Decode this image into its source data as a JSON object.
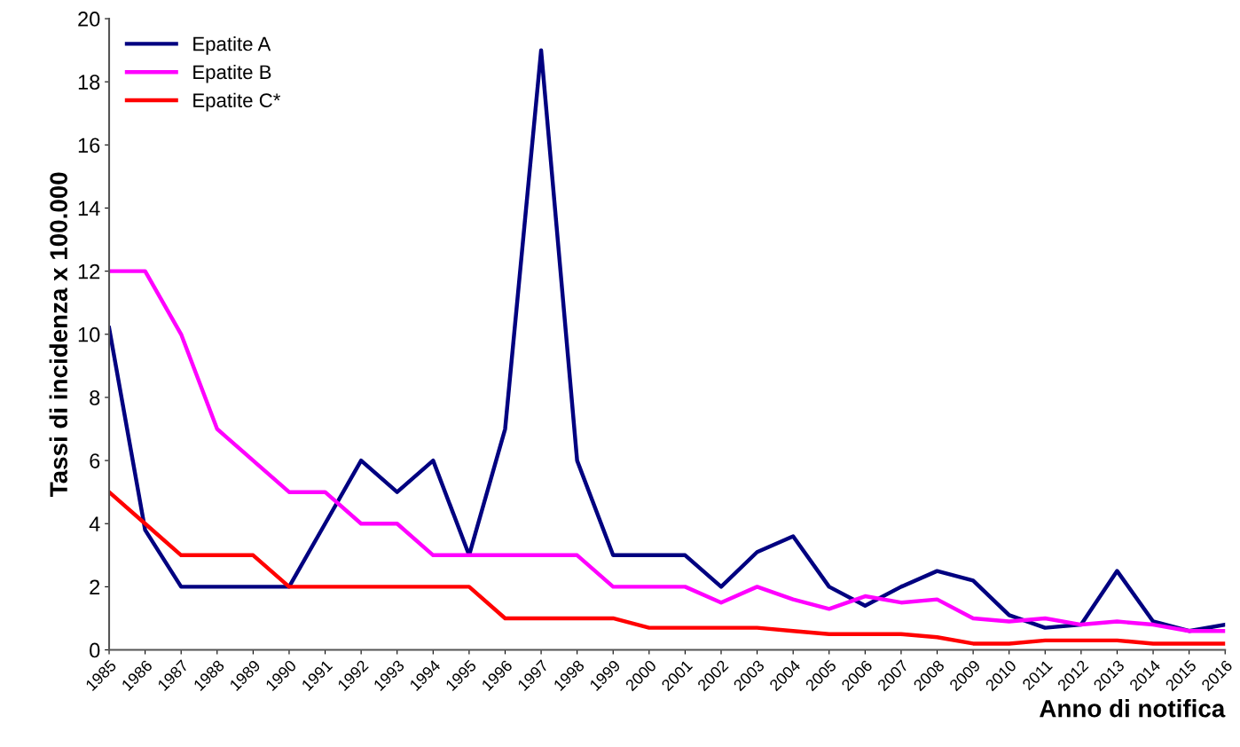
{
  "chart_data": {
    "type": "line",
    "xlabel": "Anno di notifica",
    "ylabel": "Tassi di incidenza x 100.000",
    "categories": [
      "1985",
      "1986",
      "1987",
      "1988",
      "1989",
      "1990",
      "1991",
      "1992",
      "1993",
      "1994",
      "1995",
      "1996",
      "1997",
      "1998",
      "1999",
      "2000",
      "2001",
      "2002",
      "2003",
      "2004",
      "2005",
      "2006",
      "2007",
      "2008",
      "2009",
      "2010",
      "2011",
      "2012",
      "2013",
      "2014",
      "2015",
      "2016"
    ],
    "series": [
      {
        "name": "Epatite A",
        "color": "#000080",
        "values": [
          10.2,
          3.8,
          2,
          2,
          2,
          2,
          4,
          6,
          5,
          6,
          3,
          7,
          19,
          6,
          3,
          3,
          3,
          2,
          3.1,
          3.6,
          2,
          1.4,
          2,
          2.5,
          2.2,
          1.1,
          0.7,
          0.8,
          2.5,
          0.9,
          0.6,
          0.8
        ]
      },
      {
        "name": "Epatite B",
        "color": "#ff00ff",
        "values": [
          12,
          12,
          10,
          7,
          6,
          5,
          5,
          4,
          4,
          3,
          3,
          3,
          3,
          3,
          2,
          2,
          2,
          1.5,
          2,
          1.6,
          1.3,
          1.7,
          1.5,
          1.6,
          1.0,
          0.9,
          1.0,
          0.8,
          0.9,
          0.8,
          0.6,
          0.6
        ]
      },
      {
        "name": "Epatite C*",
        "color": "#ff0000",
        "values": [
          5,
          4,
          3,
          3,
          3,
          2,
          2,
          2,
          2,
          2,
          2,
          1,
          1,
          1,
          1,
          0.7,
          0.7,
          0.7,
          0.7,
          0.6,
          0.5,
          0.5,
          0.5,
          0.4,
          0.2,
          0.2,
          0.3,
          0.3,
          0.3,
          0.2,
          0.2,
          0.2
        ]
      }
    ],
    "ylim": [
      0,
      20
    ],
    "yticks": [
      0,
      2,
      4,
      6,
      8,
      10,
      12,
      14,
      16,
      18,
      20
    ],
    "grid": false,
    "legend": "top left",
    "marker": "none",
    "line_style": "solid"
  }
}
